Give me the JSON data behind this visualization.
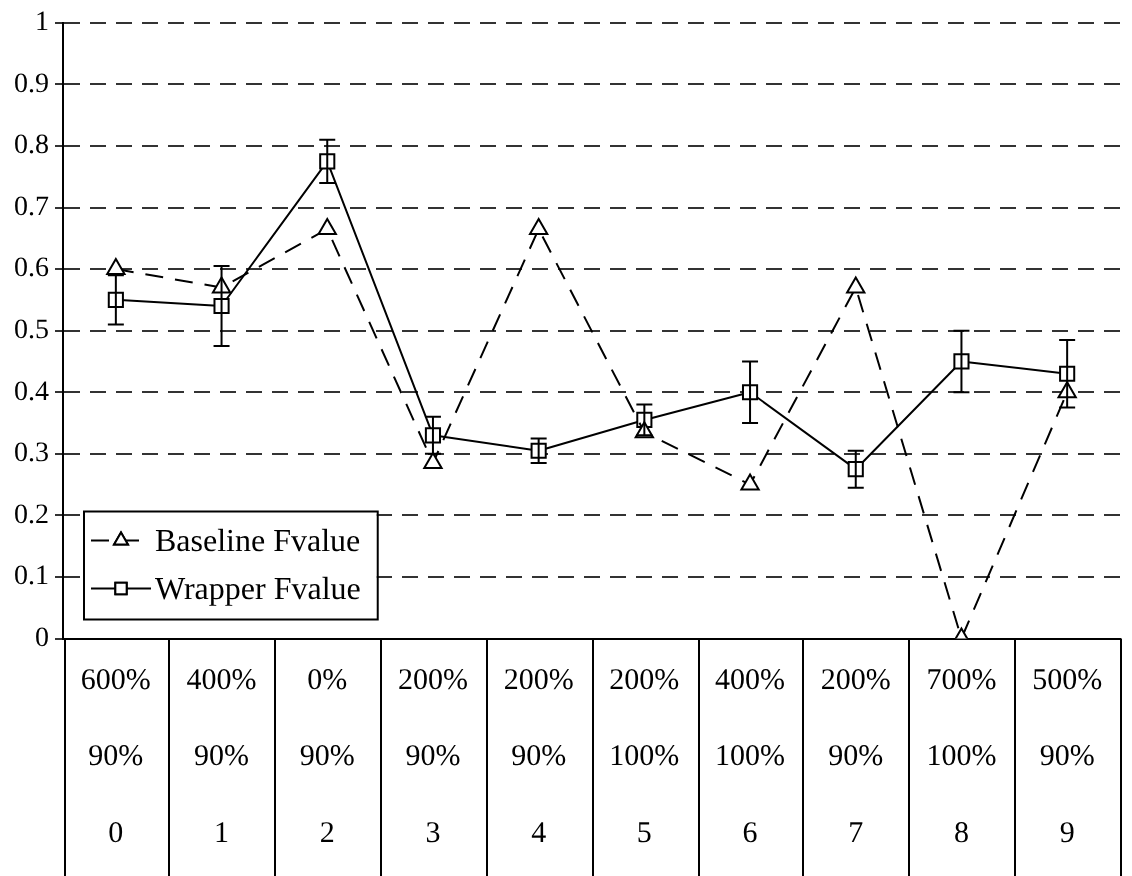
{
  "chart_data": {
    "type": "line",
    "categories": [
      "600%\n90%\n0",
      "400%\n90%\n1",
      "0%\n90%\n2",
      "200%\n90%\n3",
      "200%\n90%\n4",
      "200%\n100%\n5",
      "400%\n100%\n6",
      "200%\n90%\n7",
      "700%\n100%\n8",
      "500%\n90%\n9"
    ],
    "series": [
      {
        "name": "Baseline Fvalue",
        "color": "#000000",
        "marker": "triangle",
        "line_style": "dashed",
        "values": [
          0.6,
          0.57,
          0.665,
          0.285,
          0.665,
          0.335,
          0.25,
          0.57,
          0.0,
          0.4
        ]
      },
      {
        "name": "Wrapper Fvalue",
        "color": "#000000",
        "marker": "square",
        "line_style": "solid",
        "values": [
          0.55,
          0.54,
          0.775,
          0.33,
          0.305,
          0.355,
          0.4,
          0.275,
          0.45,
          0.43
        ],
        "errors": [
          0.04,
          0.065,
          0.035,
          0.03,
          0.02,
          0.025,
          0.05,
          0.03,
          0.05,
          0.055
        ]
      }
    ],
    "ylim": [
      0,
      1
    ],
    "yticks": [
      0,
      0.1,
      0.2,
      0.3,
      0.4,
      0.5,
      0.6,
      0.7,
      0.8,
      0.9,
      1
    ],
    "grid": "y",
    "legend": "bottom left"
  }
}
